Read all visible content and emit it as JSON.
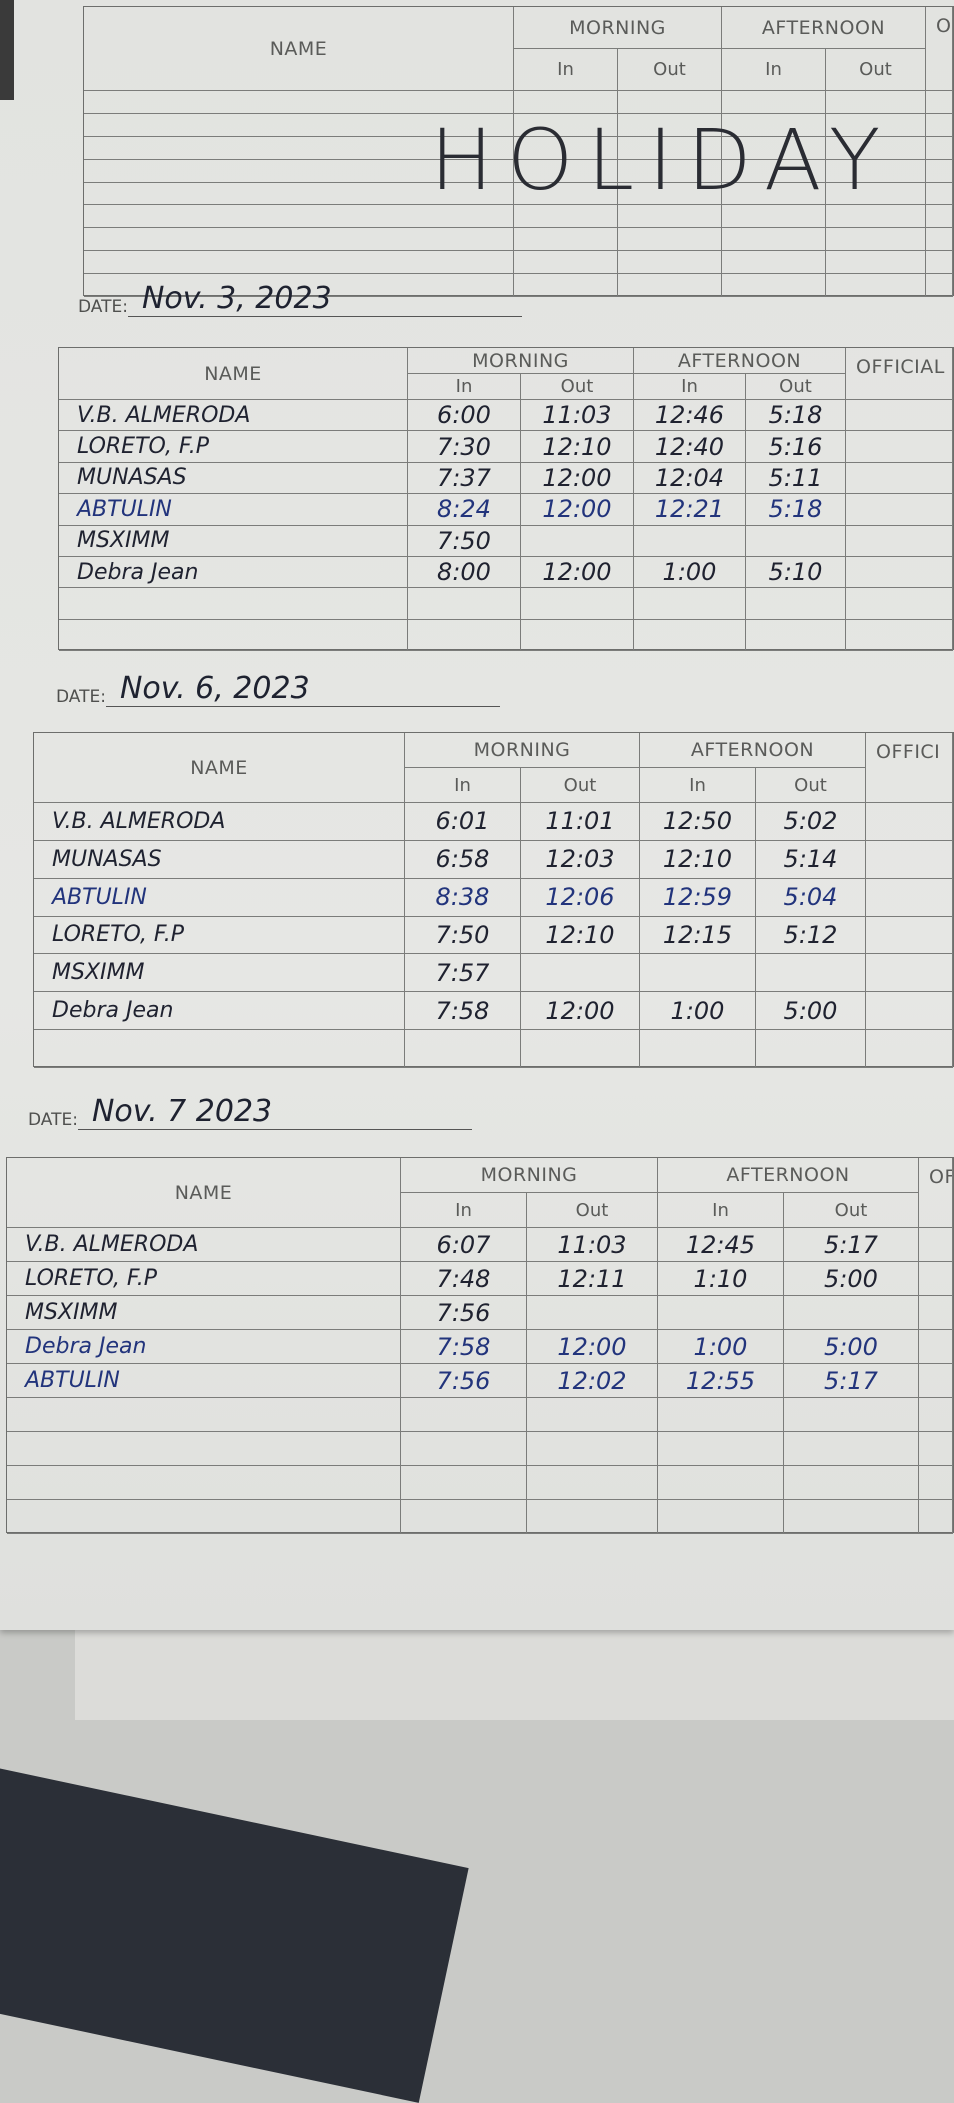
{
  "header_labels": {
    "name": "NAME",
    "morning": "MORNING",
    "afternoon": "AFTERNOON",
    "in": "In",
    "out": "Out"
  },
  "sections": [
    {
      "date": "",
      "official_label": "OFFICIAL TRA",
      "annotation": "HOLIDAY",
      "ink_colors": {
        "black": "#1f2230",
        "blue": "#22347c"
      },
      "rows": []
    },
    {
      "date": "Nov. 3, 2023",
      "official_label": "OFFICIAL",
      "rows": [
        {
          "name": "V.B. ALMERODA",
          "am_in": "6:00",
          "am_out": "11:03",
          "pm_in": "12:46",
          "pm_out": "5:18",
          "ink": "black"
        },
        {
          "name": "LORETO, F.P",
          "am_in": "7:30",
          "am_out": "12:10",
          "pm_in": "12:40",
          "pm_out": "5:16",
          "ink": "black"
        },
        {
          "name": "MUNASAS",
          "am_in": "7:37",
          "am_out": "12:00",
          "pm_in": "12:04",
          "pm_out": "5:11",
          "ink": "black"
        },
        {
          "name": "ABTULIN",
          "am_in": "8:24",
          "am_out": "12:00",
          "pm_in": "12:21",
          "pm_out": "5:18",
          "ink": "blue"
        },
        {
          "name": "MSXIMM",
          "am_in": "7:50",
          "am_out": "",
          "pm_in": "",
          "pm_out": "",
          "ink": "black"
        },
        {
          "name": "Debra Jean",
          "am_in": "8:00",
          "am_out": "12:00",
          "pm_in": "1:00",
          "pm_out": "5:10",
          "ink": "black"
        }
      ]
    },
    {
      "date": "Nov. 6, 2023",
      "official_label": "OFFICI",
      "rows": [
        {
          "name": "V.B. ALMERODA",
          "am_in": "6:01",
          "am_out": "11:01",
          "pm_in": "12:50",
          "pm_out": "5:02",
          "ink": "black"
        },
        {
          "name": "MUNASAS",
          "am_in": "6:58",
          "am_out": "12:03",
          "pm_in": "12:10",
          "pm_out": "5:14",
          "ink": "black"
        },
        {
          "name": "ABTULIN",
          "am_in": "8:38",
          "am_out": "12:06",
          "pm_in": "12:59",
          "pm_out": "5:04",
          "ink": "blue"
        },
        {
          "name": "LORETO, F.P",
          "am_in": "7:50",
          "am_out": "12:10",
          "pm_in": "12:15",
          "pm_out": "5:12",
          "ink": "black"
        },
        {
          "name": "MSXIMM",
          "am_in": "7:57",
          "am_out": "",
          "pm_in": "",
          "pm_out": "",
          "ink": "black"
        },
        {
          "name": "Debra Jean",
          "am_in": "7:58",
          "am_out": "12:00",
          "pm_in": "1:00",
          "pm_out": "5:00",
          "ink": "black"
        }
      ]
    },
    {
      "date": "Nov. 7 2023",
      "official_label": "OFF",
      "rows": [
        {
          "name": "V.B. ALMERODA",
          "am_in": "6:07",
          "am_out": "11:03",
          "pm_in": "12:45",
          "pm_out": "5:17",
          "ink": "black"
        },
        {
          "name": "LORETO, F.P",
          "am_in": "7:48",
          "am_out": "12:11",
          "pm_in": "1:10",
          "pm_out": "5:00",
          "ink": "black"
        },
        {
          "name": "MSXIMM",
          "am_in": "7:56",
          "am_out": "",
          "pm_in": "",
          "pm_out": "",
          "ink": "black"
        },
        {
          "name": "Debra Jean",
          "am_in": "7:58",
          "am_out": "12:00",
          "pm_in": "1:00",
          "pm_out": "5:00",
          "ink": "blue"
        },
        {
          "name": "ABTULIN",
          "am_in": "7:56",
          "am_out": "12:02",
          "pm_in": "12:55",
          "pm_out": "5:17",
          "ink": "blue"
        }
      ]
    }
  ]
}
